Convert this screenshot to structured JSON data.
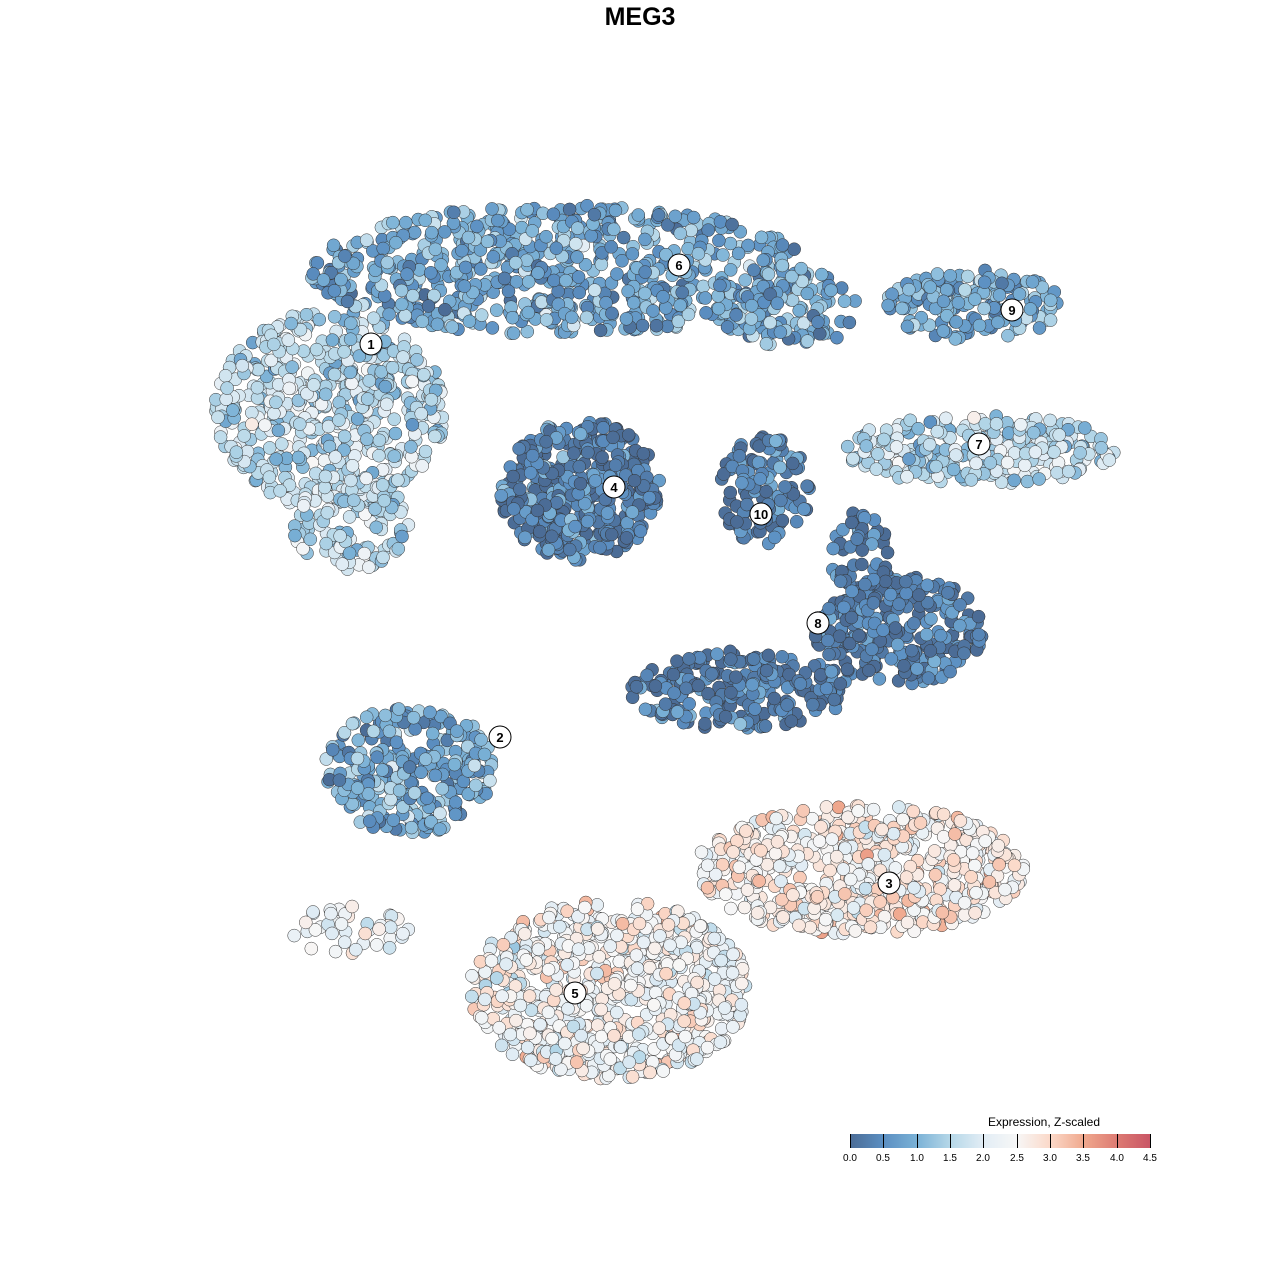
{
  "chart_data": {
    "type": "scatter",
    "title": "MEG3",
    "xlabel": "",
    "ylabel": "",
    "grid": false,
    "legend": {
      "title": "Expression, Z-scaled",
      "placement": "bottom-right",
      "range": [
        0.0,
        4.5
      ],
      "ticks": [
        "0.0",
        "0.5",
        "1.0",
        "1.5",
        "2.0",
        "2.5",
        "3.0",
        "3.5",
        "4.0",
        "4.5"
      ],
      "colors": [
        "#4b6c96",
        "#5b8fc2",
        "#7ab1d6",
        "#b5d7e8",
        "#e2edf5",
        "#f7f7f7",
        "#fbd9c9",
        "#f0a98e",
        "#dd7b73",
        "#c95565"
      ]
    },
    "clusters": [
      {
        "label": "1",
        "mean_expression": 1.6
      },
      {
        "label": "2",
        "mean_expression": 0.9
      },
      {
        "label": "3",
        "mean_expression": 2.6
      },
      {
        "label": "4",
        "mean_expression": 0.3
      },
      {
        "label": "5",
        "mean_expression": 2.4
      },
      {
        "label": "6",
        "mean_expression": 0.9
      },
      {
        "label": "7",
        "mean_expression": 1.5
      },
      {
        "label": "8",
        "mean_expression": 0.25
      },
      {
        "label": "9",
        "mean_expression": 0.9
      },
      {
        "label": "10",
        "mean_expression": 0.3
      }
    ]
  }
}
